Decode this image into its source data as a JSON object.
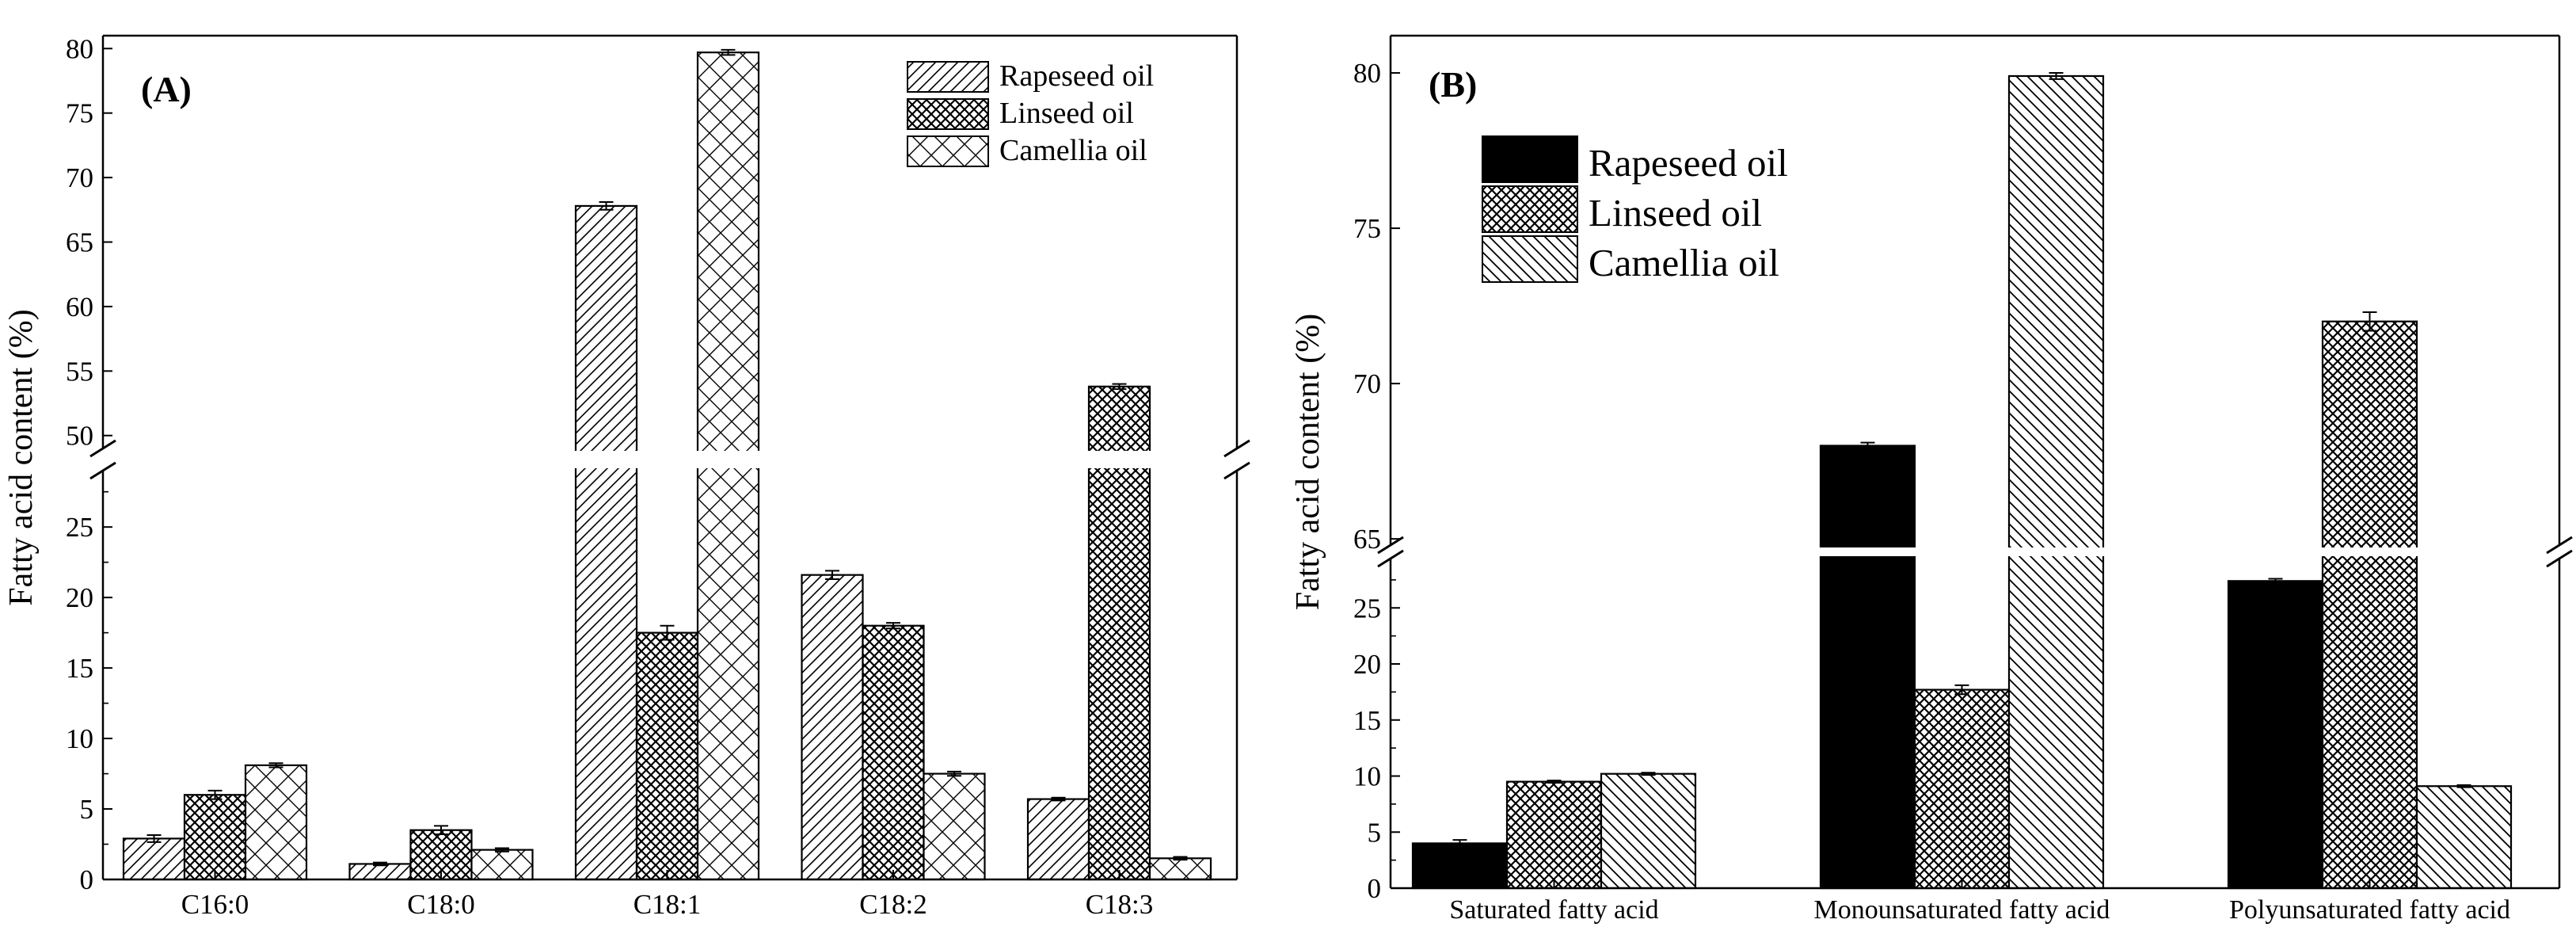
{
  "colors": {
    "black": "#000000",
    "white": "#ffffff"
  },
  "chart_data": [
    {
      "type": "bar",
      "panel_label": "(A)",
      "ylabel": "Fatty acid content (%)",
      "xlabel": "",
      "categories": [
        "C16:0",
        "C18:0",
        "C18:1",
        "C18:2",
        "C18:3"
      ],
      "series": [
        {
          "name": "Rapeseed oil",
          "pattern": "diag-right",
          "values": [
            2.9,
            1.1,
            67.8,
            21.6,
            5.7
          ],
          "errors": [
            0.25,
            0.1,
            0.3,
            0.3,
            0.1
          ]
        },
        {
          "name": "Linseed oil",
          "pattern": "crosshatch-dense",
          "values": [
            6.0,
            3.5,
            17.5,
            18.0,
            53.8
          ],
          "errors": [
            0.3,
            0.3,
            0.5,
            0.2,
            0.2
          ]
        },
        {
          "name": "Camellia oil",
          "pattern": "crosshatch-wide",
          "values": [
            8.1,
            2.1,
            79.7,
            7.5,
            1.5
          ],
          "errors": [
            0.15,
            0.12,
            0.2,
            0.15,
            0.1
          ]
        }
      ],
      "axis_break": {
        "lower_max": 29,
        "upper_min": 49
      },
      "ylim": [
        0,
        81
      ],
      "yticks_lower": [
        0,
        5,
        10,
        15,
        20,
        25
      ],
      "yticks_upper": [
        50,
        55,
        60,
        65,
        70,
        75,
        80
      ],
      "legend_position": "top-right"
    },
    {
      "type": "bar",
      "panel_label": "(B)",
      "ylabel": "Fatty acid content (%)",
      "xlabel": "",
      "categories": [
        "Saturated fatty acid",
        "Monounsaturated fatty acid",
        "Polyunsaturated fatty acid"
      ],
      "series": [
        {
          "name": "Rapeseed oil",
          "pattern": "solid-black",
          "values": [
            4.0,
            68.0,
            27.4
          ],
          "errors": [
            0.3,
            0.1,
            0.2
          ]
        },
        {
          "name": "Linseed oil",
          "pattern": "crosshatch-dense",
          "values": [
            9.5,
            17.7,
            72.0
          ],
          "errors": [
            0.1,
            0.4,
            0.3
          ]
        },
        {
          "name": "Camellia oil",
          "pattern": "diag-left",
          "values": [
            10.2,
            79.9,
            9.1
          ],
          "errors": [
            0.1,
            0.1,
            0.1
          ]
        }
      ],
      "axis_break": {
        "lower_max": 29.4,
        "upper_min": 64.8
      },
      "ylim": [
        0,
        81.2
      ],
      "yticks_lower": [
        0,
        5,
        10,
        15,
        20,
        25
      ],
      "yticks_upper": [
        65,
        70,
        75,
        80
      ],
      "legend_position": "top-left"
    }
  ]
}
